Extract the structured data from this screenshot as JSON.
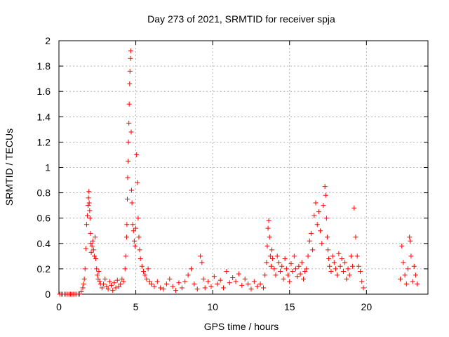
{
  "chart_data": {
    "type": "scatter",
    "title": "Day 273 of 2021, SRMTID for receiver spja",
    "xlabel": "GPS time / hours",
    "ylabel": "SRMTID / TECUs",
    "xlim": [
      0,
      24
    ],
    "ylim": [
      0,
      2
    ],
    "x_ticks": [
      0,
      5,
      10,
      15,
      20
    ],
    "x_tick_labels": [
      "0",
      "5",
      "10",
      "15",
      "20"
    ],
    "y_ticks": [
      0,
      0.2,
      0.4,
      0.6,
      0.8,
      1.0,
      1.2,
      1.4,
      1.6,
      1.8,
      2.0
    ],
    "y_tick_labels": [
      "0",
      "0.2",
      "0.4",
      "0.6",
      "0.8",
      "1",
      "1.2",
      "1.4",
      "1.6",
      "1.8",
      "2"
    ],
    "grid": true,
    "marker": "+",
    "color": "#ff0000",
    "series": [
      {
        "name": "SRMTID",
        "x": [
          0.05,
          0.15,
          0.25,
          0.35,
          0.45,
          0.55,
          0.65,
          0.75,
          0.85,
          0.95,
          1.05,
          1.15,
          1.25,
          1.35,
          1.45,
          1.55,
          1.6,
          1.65,
          1.7,
          1.75,
          1.8,
          1.85,
          1.9,
          1.92,
          1.95,
          1.97,
          2.0,
          2.02,
          2.05,
          2.08,
          2.1,
          2.15,
          2.2,
          2.25,
          2.3,
          2.35,
          2.4,
          2.45,
          2.5,
          2.55,
          2.6,
          2.65,
          2.7,
          2.8,
          2.9,
          3.0,
          3.1,
          3.2,
          3.3,
          3.4,
          3.5,
          3.6,
          3.7,
          3.8,
          3.9,
          4.0,
          4.1,
          4.2,
          4.3,
          4.35,
          4.4,
          4.42,
          4.45,
          4.47,
          4.5,
          4.52,
          4.55,
          4.57,
          4.6,
          4.62,
          4.65,
          4.67,
          4.7,
          4.72,
          4.75,
          4.8,
          4.85,
          4.9,
          4.95,
          5.0,
          5.05,
          5.1,
          5.15,
          5.2,
          5.25,
          5.3,
          5.4,
          5.5,
          5.6,
          5.7,
          5.8,
          5.9,
          6.0,
          6.2,
          6.4,
          6.6,
          6.8,
          7.0,
          7.2,
          7.4,
          7.6,
          7.8,
          8.0,
          8.2,
          8.4,
          8.6,
          8.8,
          9.0,
          9.2,
          9.3,
          9.4,
          9.5,
          9.7,
          9.9,
          10.1,
          10.3,
          10.5,
          10.7,
          10.9,
          11.1,
          11.3,
          11.5,
          11.7,
          11.9,
          12.1,
          12.3,
          12.5,
          12.7,
          12.9,
          13.1,
          13.3,
          13.4,
          13.5,
          13.55,
          13.6,
          13.65,
          13.7,
          13.75,
          13.8,
          13.85,
          13.9,
          14.0,
          14.1,
          14.2,
          14.3,
          14.4,
          14.5,
          14.6,
          14.7,
          14.8,
          14.9,
          15.0,
          15.1,
          15.2,
          15.3,
          15.4,
          15.5,
          15.6,
          15.7,
          15.8,
          15.9,
          16.0,
          16.1,
          16.2,
          16.3,
          16.4,
          16.5,
          16.6,
          16.7,
          16.8,
          16.9,
          17.0,
          17.1,
          17.2,
          17.3,
          17.35,
          17.4,
          17.45,
          17.5,
          17.55,
          17.6,
          17.7,
          17.8,
          17.9,
          18.0,
          18.1,
          18.2,
          18.3,
          18.4,
          18.5,
          18.6,
          18.7,
          18.8,
          18.9,
          19.0,
          19.1,
          19.2,
          19.3,
          19.4,
          19.5,
          19.6,
          19.7,
          19.8,
          22.2,
          22.3,
          22.4,
          22.5,
          22.6,
          22.7,
          22.8,
          22.85,
          22.9,
          23.0,
          23.1,
          23.2,
          23.3
        ],
        "y": [
          0.0,
          0.0,
          0.0,
          0.0,
          0.0,
          0.0,
          0.0,
          0.0,
          0.0,
          0.0,
          0.0,
          0.0,
          0.0,
          0.0,
          0.02,
          0.05,
          0.08,
          0.12,
          0.2,
          0.36,
          0.55,
          0.62,
          0.7,
          0.76,
          0.81,
          0.72,
          0.66,
          0.6,
          0.48,
          0.4,
          0.33,
          0.38,
          0.42,
          0.35,
          0.3,
          0.45,
          0.28,
          0.2,
          0.15,
          0.12,
          0.18,
          0.1,
          0.08,
          0.05,
          0.08,
          0.12,
          0.06,
          0.04,
          0.1,
          0.07,
          0.03,
          0.09,
          0.05,
          0.11,
          0.06,
          0.08,
          0.12,
          0.1,
          0.2,
          0.3,
          0.45,
          0.55,
          0.75,
          0.92,
          1.05,
          1.2,
          1.35,
          1.5,
          1.66,
          1.76,
          1.86,
          1.92,
          1.28,
          0.82,
          0.72,
          0.55,
          0.5,
          0.42,
          0.38,
          0.52,
          1.1,
          0.88,
          0.6,
          0.45,
          0.35,
          0.28,
          0.22,
          0.18,
          0.15,
          0.12,
          0.2,
          0.1,
          0.08,
          0.06,
          0.1,
          0.05,
          0.04,
          0.08,
          0.12,
          0.06,
          0.03,
          0.09,
          0.05,
          0.1,
          0.15,
          0.2,
          0.08,
          0.04,
          0.3,
          0.25,
          0.12,
          0.05,
          0.1,
          0.06,
          0.14,
          0.08,
          0.11,
          0.05,
          0.18,
          0.09,
          0.13,
          0.1,
          0.16,
          0.07,
          0.12,
          0.08,
          0.04,
          0.1,
          0.06,
          0.08,
          0.05,
          0.15,
          0.25,
          0.38,
          0.52,
          0.58,
          0.45,
          0.3,
          0.22,
          0.35,
          0.28,
          0.2,
          0.15,
          0.3,
          0.25,
          0.18,
          0.22,
          0.12,
          0.28,
          0.2,
          0.15,
          0.1,
          0.24,
          0.18,
          0.3,
          0.2,
          0.14,
          0.22,
          0.16,
          0.25,
          0.12,
          0.18,
          0.2,
          0.3,
          0.42,
          0.48,
          0.35,
          0.62,
          0.72,
          0.55,
          0.65,
          0.5,
          0.4,
          0.7,
          0.85,
          0.78,
          0.6,
          0.45,
          0.35,
          0.28,
          0.22,
          0.18,
          0.3,
          0.25,
          0.2,
          0.15,
          0.32,
          0.22,
          0.28,
          0.18,
          0.25,
          0.12,
          0.2,
          0.15,
          0.3,
          0.22,
          0.68,
          0.45,
          0.3,
          0.22,
          0.18,
          0.1,
          0.05,
          0.12,
          0.38,
          0.25,
          0.15,
          0.08,
          0.2,
          0.45,
          0.42,
          0.3,
          0.1,
          0.22,
          0.15,
          0.08
        ]
      }
    ]
  }
}
